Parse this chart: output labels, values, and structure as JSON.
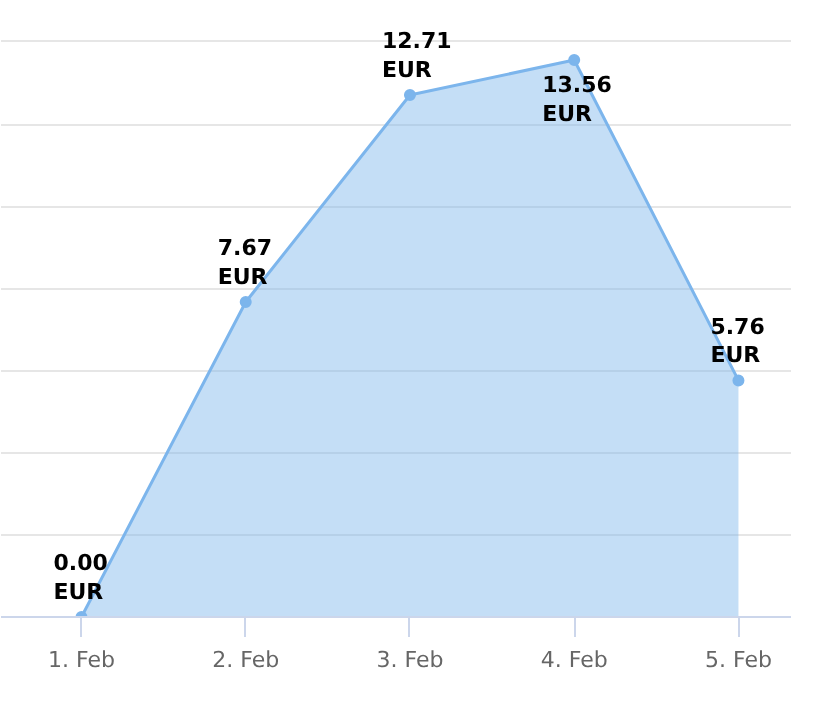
{
  "chart_data": {
    "type": "area",
    "categories": [
      "1. Feb",
      "2. Feb",
      "3. Feb",
      "4. Feb",
      "5. Feb"
    ],
    "values": [
      0.0,
      7.67,
      12.71,
      13.56,
      5.76
    ],
    "value_labels": [
      "0.00 EUR",
      "7.67 EUR",
      "12.71 EUR",
      "13.56 EUR",
      "5.76 EUR"
    ],
    "color": "#7cb5ec",
    "grid": "y",
    "tick_labels": "x",
    "marker": "circle"
  }
}
